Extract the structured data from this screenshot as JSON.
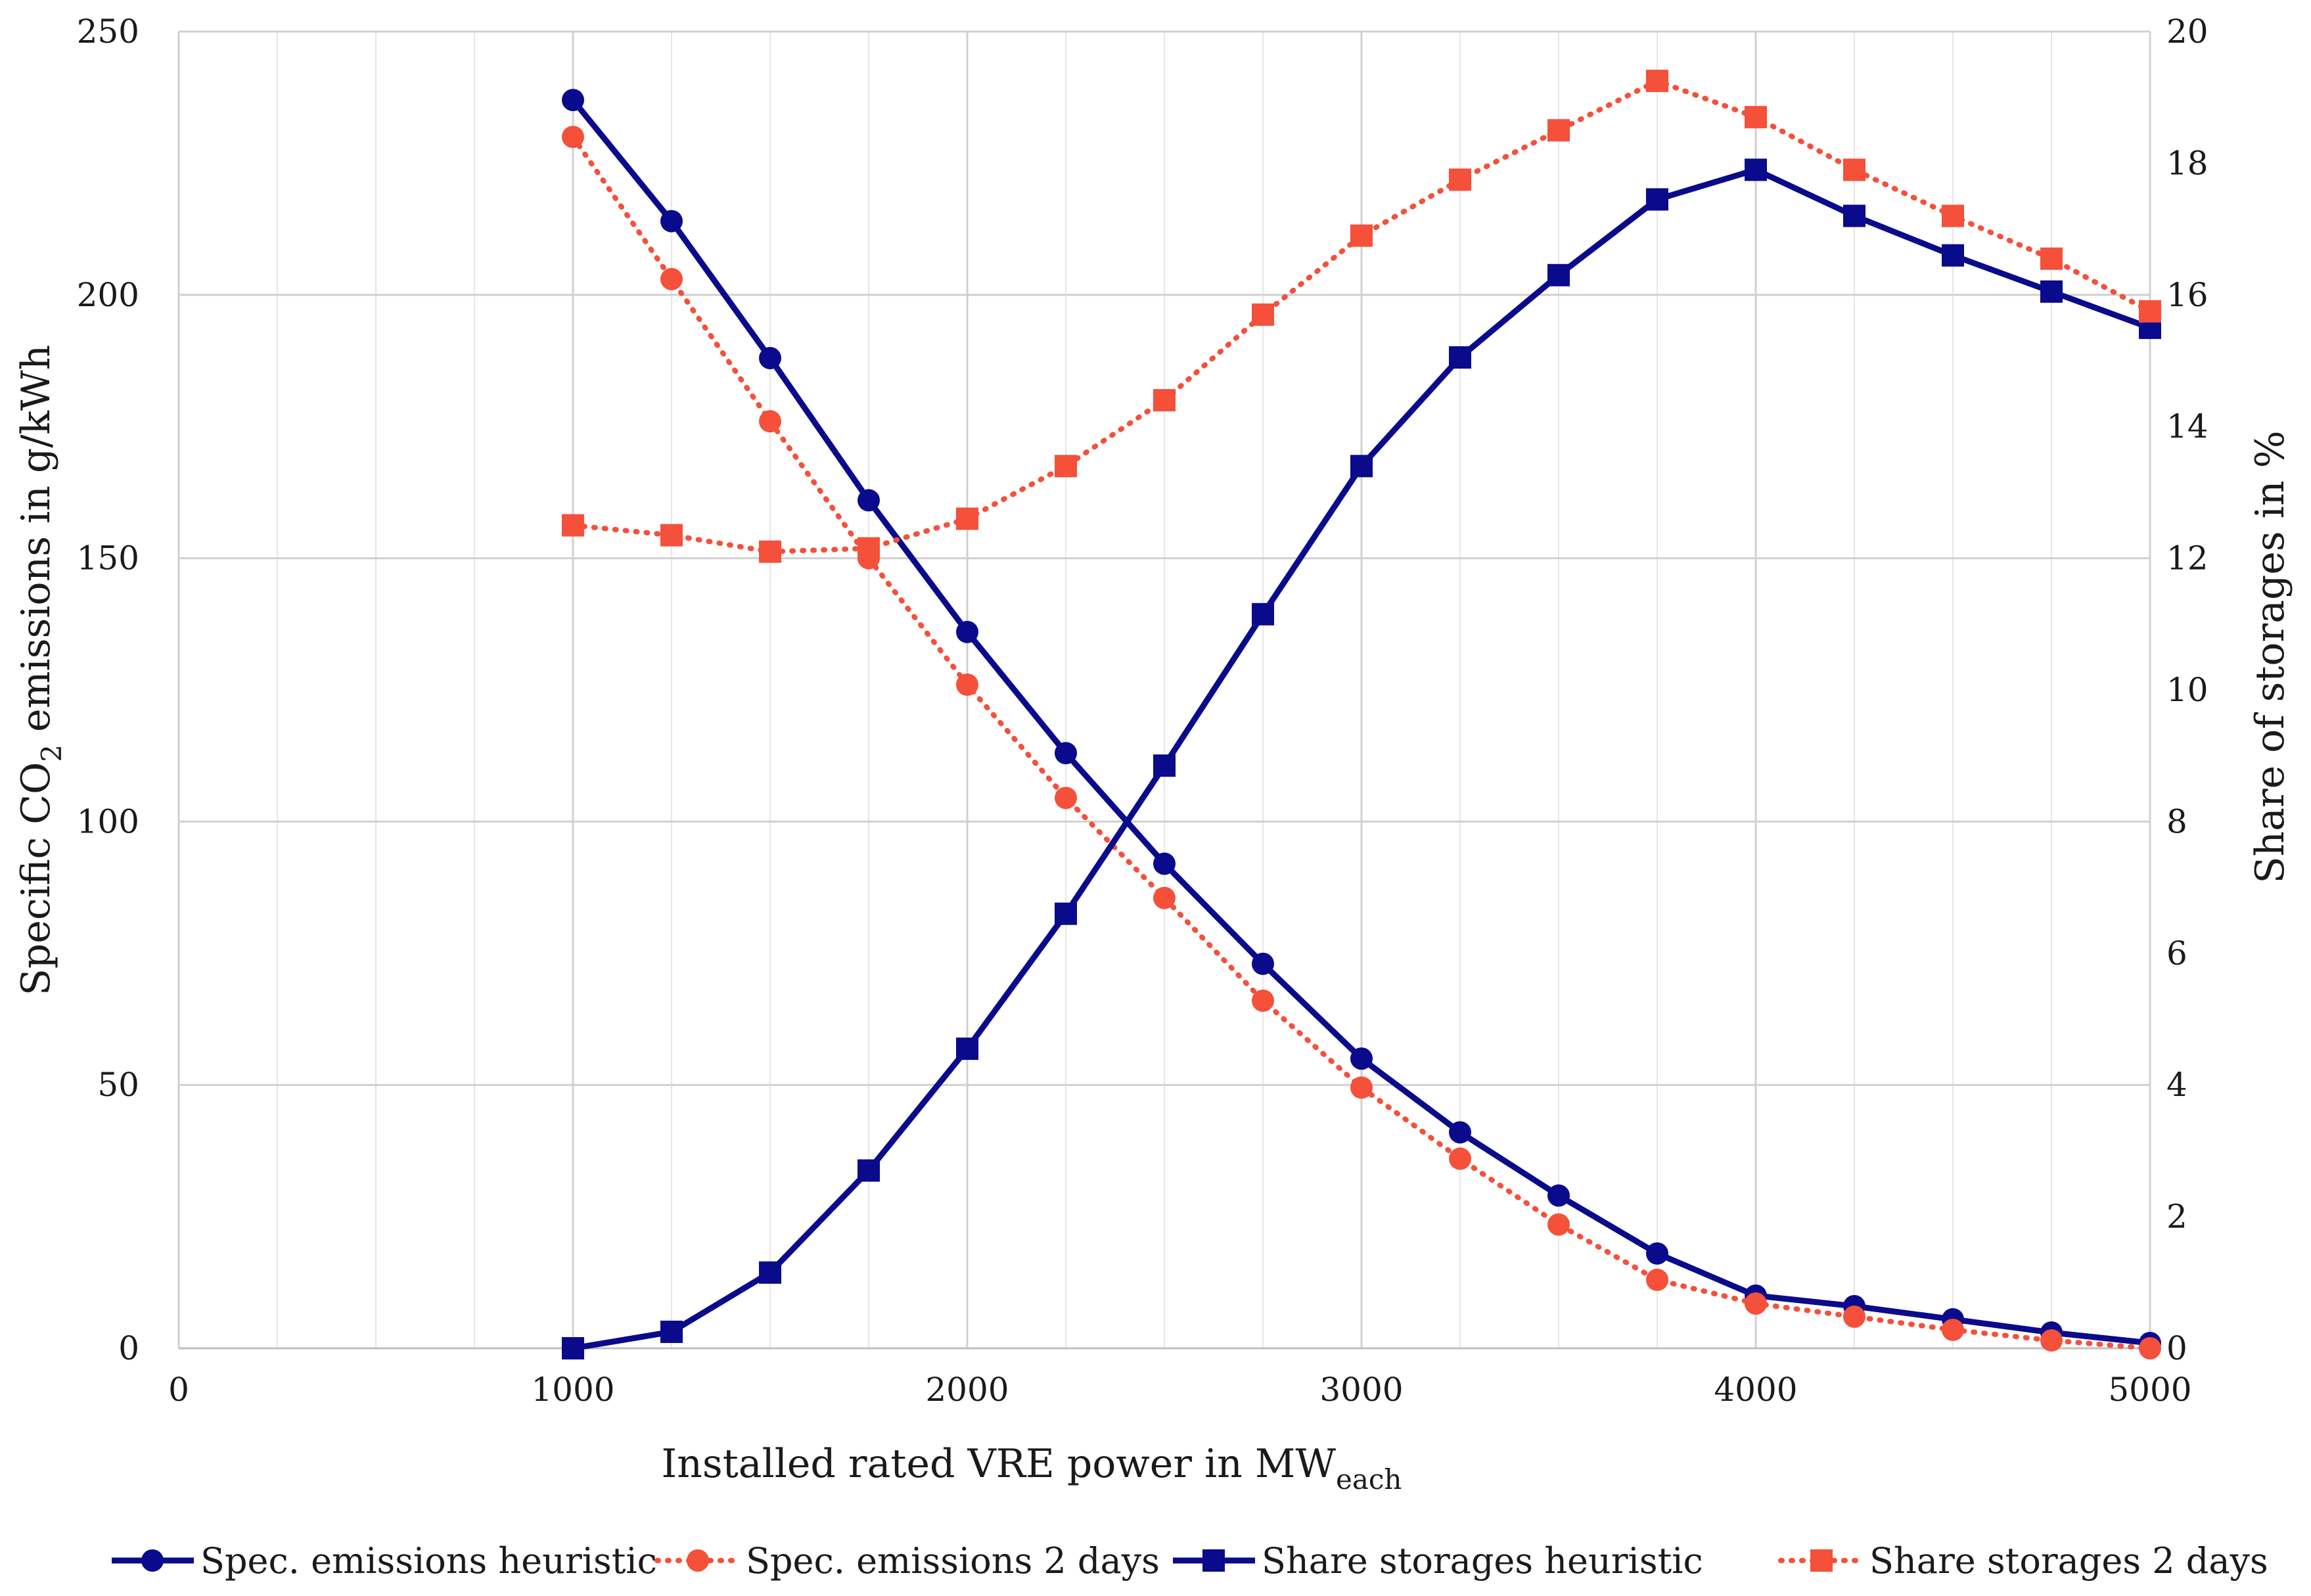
{
  "chart_data": {
    "type": "line",
    "title": "",
    "x": [
      1000,
      1250,
      1500,
      1750,
      2000,
      2250,
      2500,
      2750,
      3000,
      3250,
      3500,
      3750,
      4000,
      4250,
      4500,
      4750,
      5000
    ],
    "xlabel": {
      "main": "Installed rated VRE power in MW",
      "sub": "each"
    },
    "ylabel_left": {
      "pre": "Specific CO",
      "sub": "2",
      "post": " emissions in g/kWh"
    },
    "ylabel_right": "Share of storages in %",
    "xlim": [
      0,
      5000
    ],
    "ylim_left": [
      0,
      250
    ],
    "ylim_right": [
      0,
      20
    ],
    "x_ticks": [
      "0",
      "1000",
      "2000",
      "3000",
      "4000",
      "5000"
    ],
    "y_left_ticks": [
      "0",
      "50",
      "100",
      "150",
      "200",
      "250"
    ],
    "y_right_ticks": [
      "0",
      "2",
      "4",
      "6",
      "8",
      "10",
      "12",
      "14",
      "16",
      "18",
      "20"
    ],
    "grid": true,
    "legend_position": "bottom",
    "series": [
      {
        "name": "Spec. emissions heuristic",
        "axis": "left",
        "marker": "circle",
        "line": "solid",
        "color": "#0a0a8c",
        "values": [
          237,
          214,
          188,
          161,
          136,
          113,
          92,
          73,
          55,
          41,
          29,
          18,
          10,
          8,
          5.5,
          3,
          1
        ]
      },
      {
        "name": "Spec. emissions 2 days",
        "axis": "left",
        "marker": "circle",
        "line": "dotted",
        "color": "#f4503a",
        "values": [
          230,
          203,
          176,
          150,
          126,
          104.5,
          85.5,
          66,
          49.5,
          36,
          23.5,
          13,
          8.5,
          6,
          3.5,
          1.5,
          0
        ]
      },
      {
        "name": "Share storages heuristic",
        "axis": "right",
        "marker": "square",
        "line": "solid",
        "color": "#0a0a8c",
        "values": [
          0,
          0.25,
          1.15,
          2.7,
          4.55,
          6.6,
          8.85,
          11.15,
          13.4,
          15.05,
          16.3,
          17.45,
          17.9,
          17.2,
          16.6,
          16.05,
          15.5
        ]
      },
      {
        "name": "Share storages 2 days",
        "axis": "right",
        "marker": "square",
        "line": "dotted",
        "color": "#f4503a",
        "values": [
          12.5,
          12.35,
          12.1,
          12.15,
          12.6,
          13.4,
          14.4,
          15.7,
          16.9,
          17.75,
          18.5,
          19.25,
          18.7,
          17.9,
          17.2,
          16.55,
          15.75
        ]
      }
    ]
  }
}
